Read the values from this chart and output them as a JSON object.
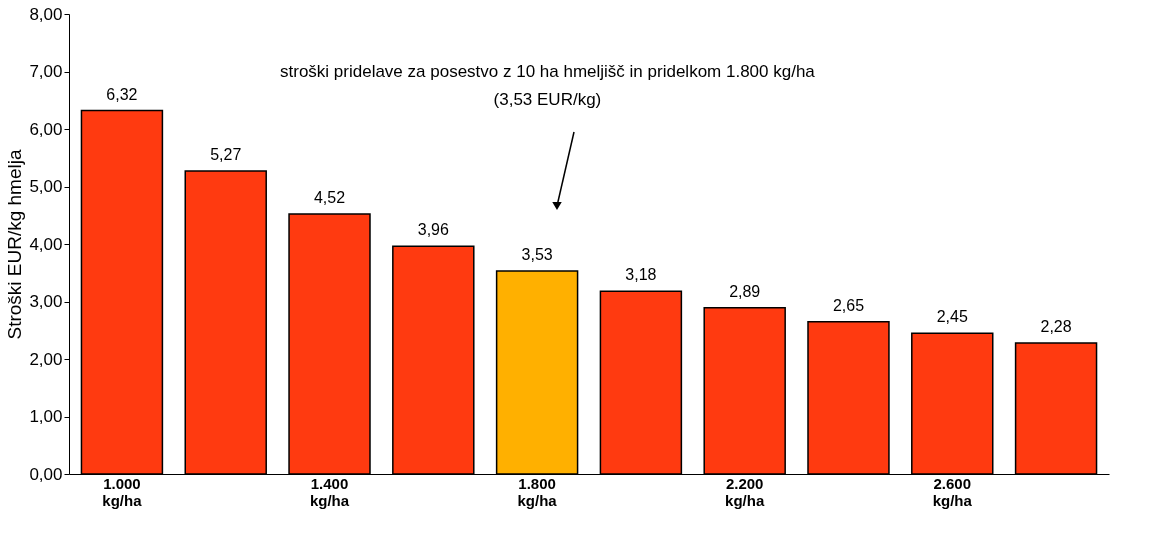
{
  "chart_data": {
    "type": "bar",
    "ylabel": "Stroški EUR/kg hmelja",
    "categories": [
      "1.000 kg/ha",
      null,
      "1.400 kg/ha",
      null,
      "1.800 kg/ha",
      null,
      "2.200 kg/ha",
      null,
      "2.600 kg/ha",
      null
    ],
    "values": [
      6.32,
      5.27,
      4.52,
      3.96,
      3.53,
      3.18,
      2.89,
      2.65,
      2.45,
      2.28
    ],
    "colors": [
      "#ff3a10",
      "#ff3a10",
      "#ff3a10",
      "#ff3a10",
      "#ffb000",
      "#ff3a10",
      "#ff3a10",
      "#ff3a10",
      "#ff3a10",
      "#ff3a10"
    ],
    "value_labels": [
      "6,32",
      "5,27",
      "4,52",
      "3,96",
      "3,53",
      "3,18",
      "2,89",
      "2,65",
      "2,45",
      "2,28"
    ],
    "ylim": [
      0,
      8
    ],
    "yticks": [
      {
        "value": 0,
        "label": "0,00"
      },
      {
        "value": 1,
        "label": "1,00"
      },
      {
        "value": 2,
        "label": "2,00"
      },
      {
        "value": 3,
        "label": "3,00"
      },
      {
        "value": 4,
        "label": "4,00"
      },
      {
        "value": 5,
        "label": "5,00"
      },
      {
        "value": 6,
        "label": "6,00"
      },
      {
        "value": 7,
        "label": "7,00"
      },
      {
        "value": 8,
        "label": "8,00"
      }
    ],
    "annotations": [
      "stroški pridelave za posestvo z 10 ha hmeljišč in pridelkom 1.800 kg/ha",
      "(3,53 EUR/kg)"
    ],
    "grid": false
  }
}
